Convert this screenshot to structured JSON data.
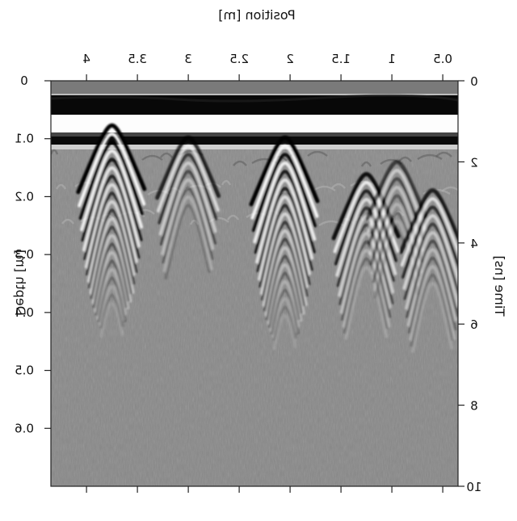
{
  "chart_data": {
    "type": "heatmap",
    "title": "",
    "xlabel": "Position [m]",
    "ylabel_left": "Depth [m]",
    "ylabel_right": "Time [ns]",
    "x_axis": {
      "position": "top",
      "direction": "decreasing-left-to-right",
      "xlim": [
        4.35,
        0.35
      ],
      "ticks": [
        4,
        3.5,
        3,
        2.5,
        2,
        1.5,
        1,
        0.5
      ],
      "tick_labels": [
        "4",
        "3.5",
        "3",
        "2.5",
        "2",
        "1.5",
        "1",
        "0.5"
      ]
    },
    "y_left": {
      "ylim": [
        0,
        0.7
      ],
      "ticks": [
        0,
        0.1,
        0.2,
        0.3,
        0.4,
        0.5,
        0.6
      ],
      "tick_labels": [
        "0",
        "0.1",
        "0.2",
        "0.3",
        "0.4",
        "0.5",
        "0.6"
      ]
    },
    "y_right": {
      "ylim": [
        0,
        10
      ],
      "ticks": [
        0,
        2,
        4,
        6,
        8,
        10
      ],
      "tick_labels": [
        "0",
        "2",
        "4",
        "6",
        "8",
        "10"
      ]
    },
    "colormap": "grayscale",
    "text_mirrored": true,
    "hyperbolas": [
      {
        "position_m": 3.75,
        "apex_time_ns": 1.1,
        "strength": 1.0
      },
      {
        "position_m": 3.0,
        "apex_time_ns": 1.4,
        "strength": 0.75
      },
      {
        "position_m": 2.05,
        "apex_time_ns": 1.4,
        "strength": 1.0
      },
      {
        "position_m": 1.25,
        "apex_time_ns": 2.3,
        "strength": 0.9
      },
      {
        "position_m": 0.95,
        "apex_time_ns": 2.0,
        "strength": 0.6
      },
      {
        "position_m": 0.6,
        "apex_time_ns": 2.7,
        "strength": 0.8
      }
    ]
  }
}
